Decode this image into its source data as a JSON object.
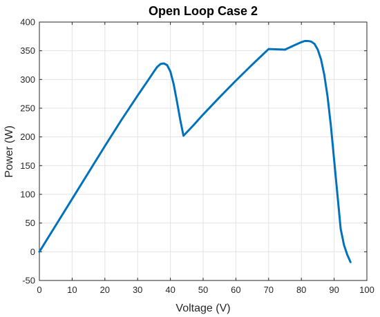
{
  "chart_data": {
    "type": "line",
    "title": "Open Loop Case 2",
    "xlabel": "Voltage (V)",
    "ylabel": "Power (W)",
    "xlim": [
      0,
      100
    ],
    "ylim": [
      -50,
      400
    ],
    "x_ticks": [
      "0",
      "10",
      "20",
      "30",
      "40",
      "50",
      "60",
      "70",
      "80",
      "90",
      "100"
    ],
    "y_ticks": [
      "-50",
      "0",
      "50",
      "100",
      "150",
      "200",
      "250",
      "300",
      "350",
      "400"
    ],
    "grid": true,
    "line_color": "#0072BD",
    "series": [
      {
        "x": [
          0,
          5,
          10,
          15,
          20,
          25,
          30,
          33,
          35,
          36,
          37,
          38,
          39,
          40,
          41,
          42,
          43,
          44,
          47,
          50,
          55,
          60,
          65,
          70,
          75,
          78,
          80,
          81,
          82,
          83,
          84,
          85,
          86,
          87,
          88,
          89,
          90,
          91,
          92,
          93,
          94,
          95
        ],
        "y": [
          0,
          46,
          92,
          138,
          184,
          229,
          272,
          297,
          314,
          322,
          327,
          328,
          325,
          314,
          292,
          262,
          230,
          202,
          220,
          239,
          269,
          298,
          326,
          353,
          352,
          360,
          365,
          367,
          367,
          366,
          362,
          352,
          335,
          308,
          270,
          220,
          160,
          100,
          40,
          12,
          -5,
          -18
        ]
      }
    ]
  }
}
